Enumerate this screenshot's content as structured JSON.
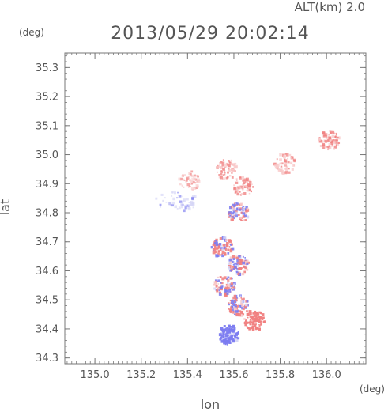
{
  "header": {
    "altitude_label": "ALT(km)  2.0",
    "timestamp": "2013/05/29 20:02:14"
  },
  "chart_data": {
    "type": "heatmap",
    "title": "2013/05/29 20:02:14",
    "xlabel": "lon",
    "ylabel": "lat",
    "x_unit": "(deg)",
    "y_unit": "(deg)",
    "xlim": [
      134.87,
      136.17
    ],
    "ylim": [
      34.28,
      35.35
    ],
    "x_ticks": [
      135.0,
      135.2,
      135.4,
      135.6,
      135.8,
      136.0
    ],
    "y_ticks": [
      34.3,
      34.4,
      34.5,
      34.6,
      34.7,
      34.8,
      34.9,
      35.0,
      35.1,
      35.2,
      35.3
    ],
    "x_tick_labels": [
      "135.0",
      "135.2",
      "135.4",
      "135.6",
      "135.8",
      "136.0"
    ],
    "y_tick_labels": [
      "34.3",
      "34.4",
      "34.5",
      "34.6",
      "34.7",
      "34.8",
      "34.9",
      "35.0",
      "35.1",
      "35.2",
      "35.3"
    ],
    "colors": {
      "positive": "#f08080",
      "negative": "#7b7bf0",
      "light_positive": "#f8c8c8",
      "light_negative": "#d4d4f6"
    },
    "regions": [
      {
        "lon": 135.35,
        "lat": 34.84,
        "sign": "negative",
        "intensity": 0.25
      },
      {
        "lon": 135.41,
        "lat": 34.91,
        "sign": "positive",
        "intensity": 0.25
      },
      {
        "lon": 135.57,
        "lat": 34.95,
        "sign": "positive",
        "intensity": 0.45
      },
      {
        "lon": 135.64,
        "lat": 34.89,
        "sign": "positive",
        "intensity": 0.5
      },
      {
        "lon": 135.82,
        "lat": 34.97,
        "sign": "positive",
        "intensity": 0.4
      },
      {
        "lon": 136.01,
        "lat": 35.05,
        "sign": "positive",
        "intensity": 0.55
      },
      {
        "lon": 135.62,
        "lat": 34.8,
        "sign": "mixed",
        "intensity": 0.7
      },
      {
        "lon": 135.55,
        "lat": 34.68,
        "sign": "mixed",
        "intensity": 0.75
      },
      {
        "lon": 135.62,
        "lat": 34.62,
        "sign": "mixed",
        "intensity": 0.75
      },
      {
        "lon": 135.56,
        "lat": 34.55,
        "sign": "mixed",
        "intensity": 0.7
      },
      {
        "lon": 135.62,
        "lat": 34.48,
        "sign": "mixed",
        "intensity": 0.75
      },
      {
        "lon": 135.69,
        "lat": 34.43,
        "sign": "positive",
        "intensity": 0.9
      },
      {
        "lon": 135.58,
        "lat": 34.38,
        "sign": "negative",
        "intensity": 0.9
      }
    ]
  }
}
